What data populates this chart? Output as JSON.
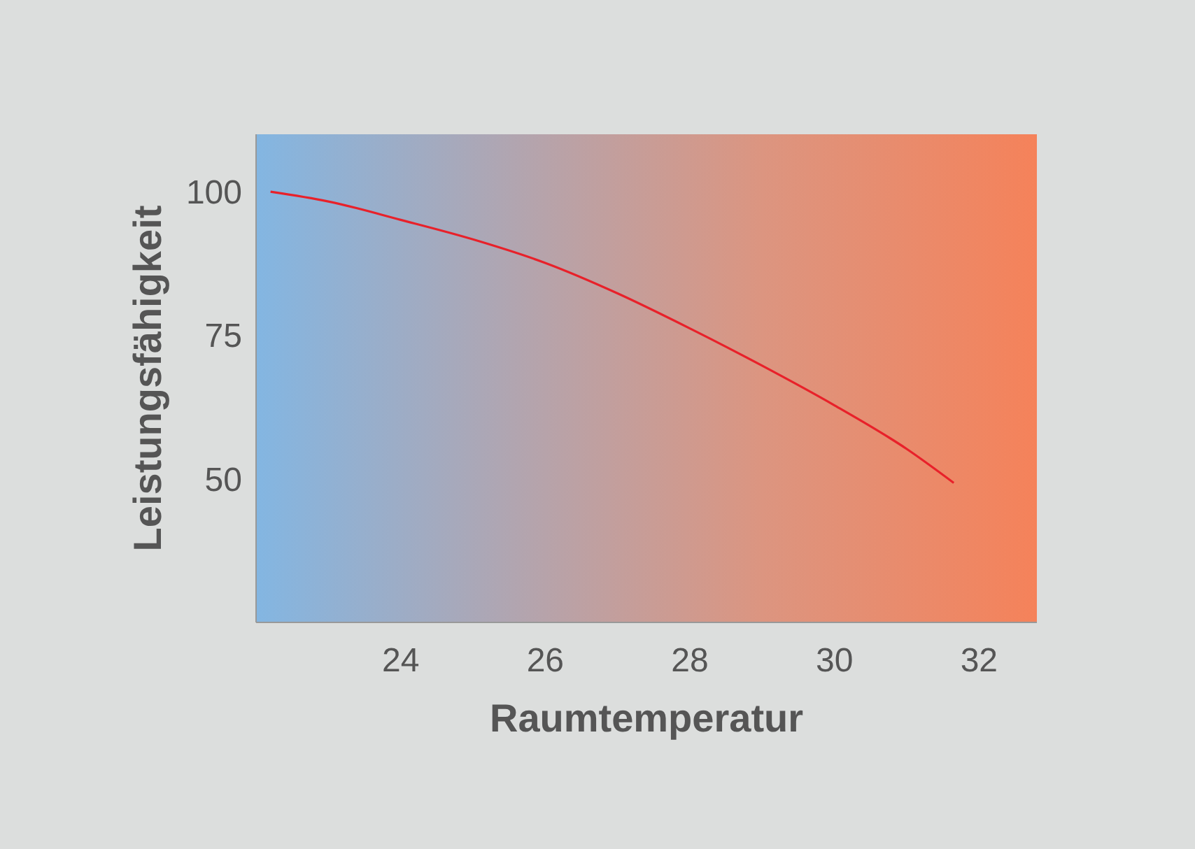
{
  "chart_data": {
    "type": "line",
    "xlabel": "Raumtemperatur",
    "ylabel": "Leistungsfähigkeit",
    "x": [
      22.2,
      23,
      24,
      25,
      26,
      27,
      28,
      29,
      30,
      31,
      31.65
    ],
    "series": [
      {
        "color": "#e8212a",
        "values": [
          100,
          98.3,
          95.1,
          91.7,
          87.6,
          82.3,
          76.2,
          69.7,
          62.8,
          55.2,
          49.3
        ]
      }
    ],
    "xlim": [
      22,
      32.8
    ],
    "xticks": [
      24,
      26,
      28,
      30,
      32
    ],
    "ylim": [
      25,
      110
    ],
    "yticks": [
      50,
      75,
      100
    ],
    "marker": "none",
    "line_style": "solid"
  }
}
